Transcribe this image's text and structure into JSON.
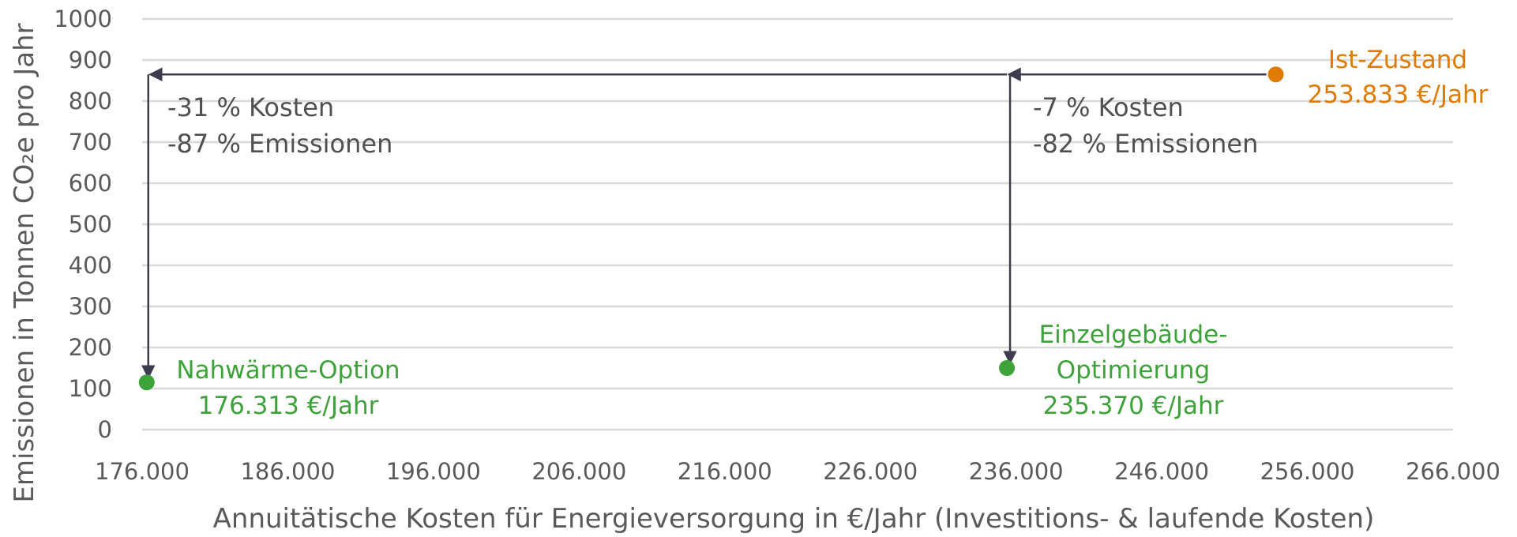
{
  "chart_data": {
    "type": "scatter",
    "xlabel": "Annuitätische Kosten für Energieversorgung in €/Jahr (Investitions- & laufende Kosten)",
    "ylabel": "Emissionen in Tonnen CO₂e pro Jahr",
    "xlim": [
      176000,
      266000
    ],
    "ylim": [
      0,
      1000
    ],
    "x_ticks": [
      "176.000",
      "186.000",
      "196.000",
      "206.000",
      "216.000",
      "226.000",
      "236.000",
      "246.000",
      "256.000",
      "266.000"
    ],
    "y_ticks": [
      "0",
      "100",
      "200",
      "300",
      "400",
      "500",
      "600",
      "700",
      "800",
      "900",
      "1000"
    ],
    "grid": "horizontal",
    "points": [
      {
        "x": 253833,
        "y": 865,
        "color": "#e07b00",
        "label_lines": [
          "Ist-Zustand",
          "253.833 €/Jahr"
        ]
      },
      {
        "x": 235370,
        "y": 150,
        "color": "#3ea23a",
        "label_lines": [
          "Einzelgebäude-",
          "Optimierung",
          "235.370 €/Jahr"
        ]
      },
      {
        "x": 176313,
        "y": 115,
        "color": "#3ea23a",
        "label_lines": [
          "Nahwärme-Option",
          "176.313 €/Jahr"
        ]
      }
    ],
    "annotations": [
      {
        "lines": [
          "-7 % Kosten",
          "-82 % Emissionen"
        ]
      },
      {
        "lines": [
          "-31 % Kosten",
          "-87 % Emissionen"
        ]
      }
    ]
  }
}
